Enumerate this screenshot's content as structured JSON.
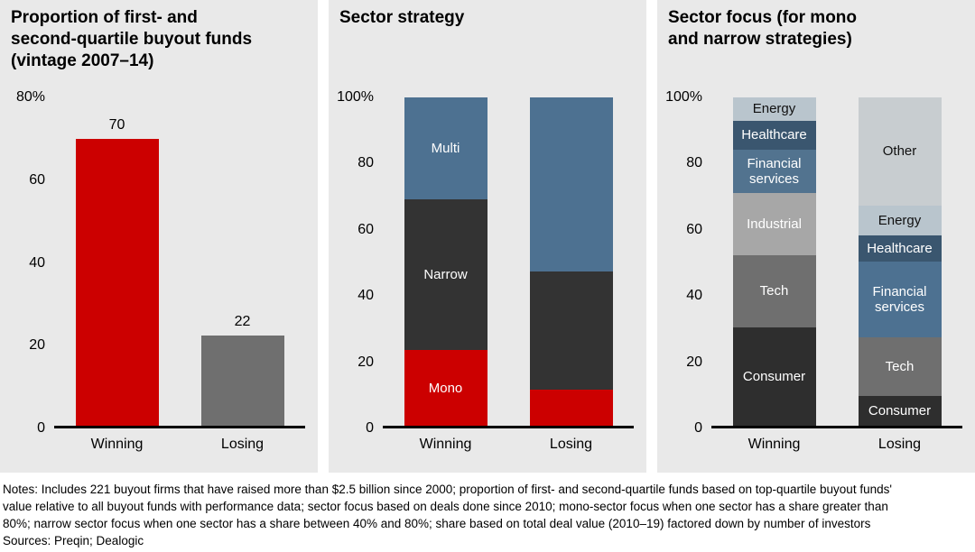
{
  "page": {
    "background": "#ffffff",
    "panel_background": "#e9e9e9",
    "axis_color": "#000000"
  },
  "notes": {
    "lines": [
      "Notes: Includes 221 buyout firms that have raised more than $2.5 billion since 2000; proportion of first- and second-quartile funds based on top-quartile buyout funds'",
      "value relative to all buyout funds with performance data; sector focus based on deals done since 2010; mono-sector focus when one sector has a share greater than",
      "80%; narrow sector focus when one sector has a share between 40% and 80%; share based on total deal value (2010–19) factored down by number of investors",
      "Sources: Preqin; Dealogic"
    ]
  },
  "chart_data": [
    {
      "type": "bar",
      "title": "Proportion of first- and second-quartile buyout funds (vintage 2007–14)",
      "title_display": "Proportion of first- and\nsecond-quartile buyout funds\n(vintage 2007–14)",
      "ylim": [
        0,
        80
      ],
      "grid": false,
      "yticks": [
        {
          "value": 0,
          "label": "0"
        },
        {
          "value": 20,
          "label": "20"
        },
        {
          "value": 40,
          "label": "40"
        },
        {
          "value": 60,
          "label": "60"
        },
        {
          "value": 80,
          "label": "80%"
        }
      ],
      "categories": [
        "Winning",
        "Losing"
      ],
      "values": [
        70,
        22
      ],
      "data_labels": [
        "70",
        "22"
      ],
      "bar_colors": [
        "#cc0000",
        "#6f6f6f"
      ]
    },
    {
      "type": "stacked-bar",
      "title": "Sector strategy",
      "title_display": "Sector strategy",
      "ylim": [
        0,
        100
      ],
      "grid": false,
      "yticks": [
        {
          "value": 0,
          "label": "0"
        },
        {
          "value": 20,
          "label": "20"
        },
        {
          "value": 40,
          "label": "40"
        },
        {
          "value": 60,
          "label": "60"
        },
        {
          "value": 80,
          "label": "80"
        },
        {
          "value": 100,
          "label": "100%"
        }
      ],
      "categories": [
        "Winning",
        "Losing"
      ],
      "bars": [
        {
          "category": "Winning",
          "segments": [
            {
              "label": "Mono",
              "value": 23,
              "color": "#cc0000",
              "text": "#ffffff"
            },
            {
              "label": "Narrow",
              "value": 46,
              "color": "#333333",
              "text": "#ffffff"
            },
            {
              "label": "Multi",
              "value": 31,
              "color": "#4d7191",
              "text": "#ffffff"
            }
          ]
        },
        {
          "category": "Losing",
          "segments": [
            {
              "label": "",
              "value": 11,
              "color": "#cc0000",
              "text": "#ffffff"
            },
            {
              "label": "",
              "value": 36,
              "color": "#333333",
              "text": "#ffffff"
            },
            {
              "label": "",
              "value": 53,
              "color": "#4d7191",
              "text": "#ffffff"
            }
          ]
        }
      ]
    },
    {
      "type": "stacked-bar",
      "title": "Sector focus (for mono and narrow strategies)",
      "title_display": "Sector focus (for mono\nand narrow strategies)",
      "ylim": [
        0,
        100
      ],
      "grid": false,
      "yticks": [
        {
          "value": 0,
          "label": "0"
        },
        {
          "value": 20,
          "label": "20"
        },
        {
          "value": 40,
          "label": "40"
        },
        {
          "value": 60,
          "label": "60"
        },
        {
          "value": 80,
          "label": "80"
        },
        {
          "value": 100,
          "label": "100%"
        }
      ],
      "categories": [
        "Winning",
        "Losing"
      ],
      "bars": [
        {
          "category": "Winning",
          "segments": [
            {
              "label": "Consumer",
              "value": 30,
              "color": "#2e2e2e",
              "text": "#ffffff"
            },
            {
              "label": "Tech",
              "value": 22,
              "color": "#6f6f6f",
              "text": "#ffffff"
            },
            {
              "label": "Industrial",
              "value": 19,
              "color": "#a7a7a7",
              "text": "#ffffff"
            },
            {
              "label": "Financial services",
              "value": 13,
              "color": "#52738f",
              "text": "#ffffff"
            },
            {
              "label": "Healthcare",
              "value": 9,
              "color": "#3a566f",
              "text": "#ffffff"
            },
            {
              "label": "Energy",
              "value": 7,
              "color": "#b9c5cd",
              "text": "#111111"
            }
          ]
        },
        {
          "category": "Losing",
          "segments": [
            {
              "label": "Consumer",
              "value": 9,
              "color": "#2e2e2e",
              "text": "#ffffff"
            },
            {
              "label": "Tech",
              "value": 18,
              "color": "#6f6f6f",
              "text": "#ffffff"
            },
            {
              "label": "Financial services",
              "value": 23,
              "color": "#4d7191",
              "text": "#ffffff"
            },
            {
              "label": "Healthcare",
              "value": 8,
              "color": "#3a566f",
              "text": "#ffffff"
            },
            {
              "label": "Energy",
              "value": 9,
              "color": "#b9c5cd",
              "text": "#111111"
            },
            {
              "label": "Other",
              "value": 33,
              "color": "#c8cdd0",
              "text": "#111111"
            }
          ]
        }
      ]
    }
  ]
}
